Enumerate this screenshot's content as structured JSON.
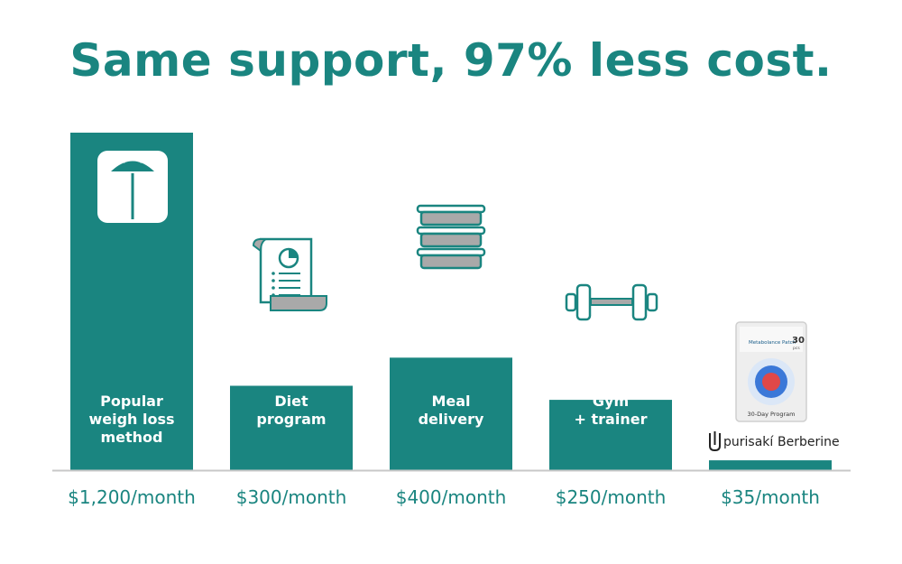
{
  "colors": {
    "bar": "#1a8580",
    "title": "#1a8580",
    "price": "#1a8580",
    "axis": "#c8c8c8",
    "icon_stroke": "#1a8580",
    "icon_fill_grey": "#a9a9a9"
  },
  "chart_data": {
    "type": "bar",
    "title": "Same support, 97% less cost.",
    "xlabel": "",
    "ylabel": "",
    "ylim": [
      0,
      1200
    ],
    "grid": false,
    "categories": [
      "Popular weigh loss method",
      "Diet program",
      "Meal delivery",
      "Gym + trainer",
      "purisakí Berberine"
    ],
    "bar_text": [
      [
        "Popular",
        "weigh loss",
        "method"
      ],
      [
        "Diet",
        "program"
      ],
      [
        "Meal",
        "delivery"
      ],
      [
        "Gym",
        "+ trainer"
      ],
      []
    ],
    "values": [
      1200,
      300,
      400,
      250,
      35
    ],
    "value_labels": [
      "$1,200/month",
      "$300/month",
      "$400/month",
      "$250/month",
      "$35/month"
    ],
    "icons": [
      "scale-icon",
      "diet-plan-document-icon",
      "meal-containers-icon",
      "dumbbell-icon",
      "product-package-icon"
    ]
  },
  "product": {
    "brand": "purisakí",
    "name": "Berberine",
    "package_top_text": "Metabolance Patch",
    "package_count": "30",
    "package_count_unit": "pcs",
    "package_caption": "30-Day Program"
  }
}
